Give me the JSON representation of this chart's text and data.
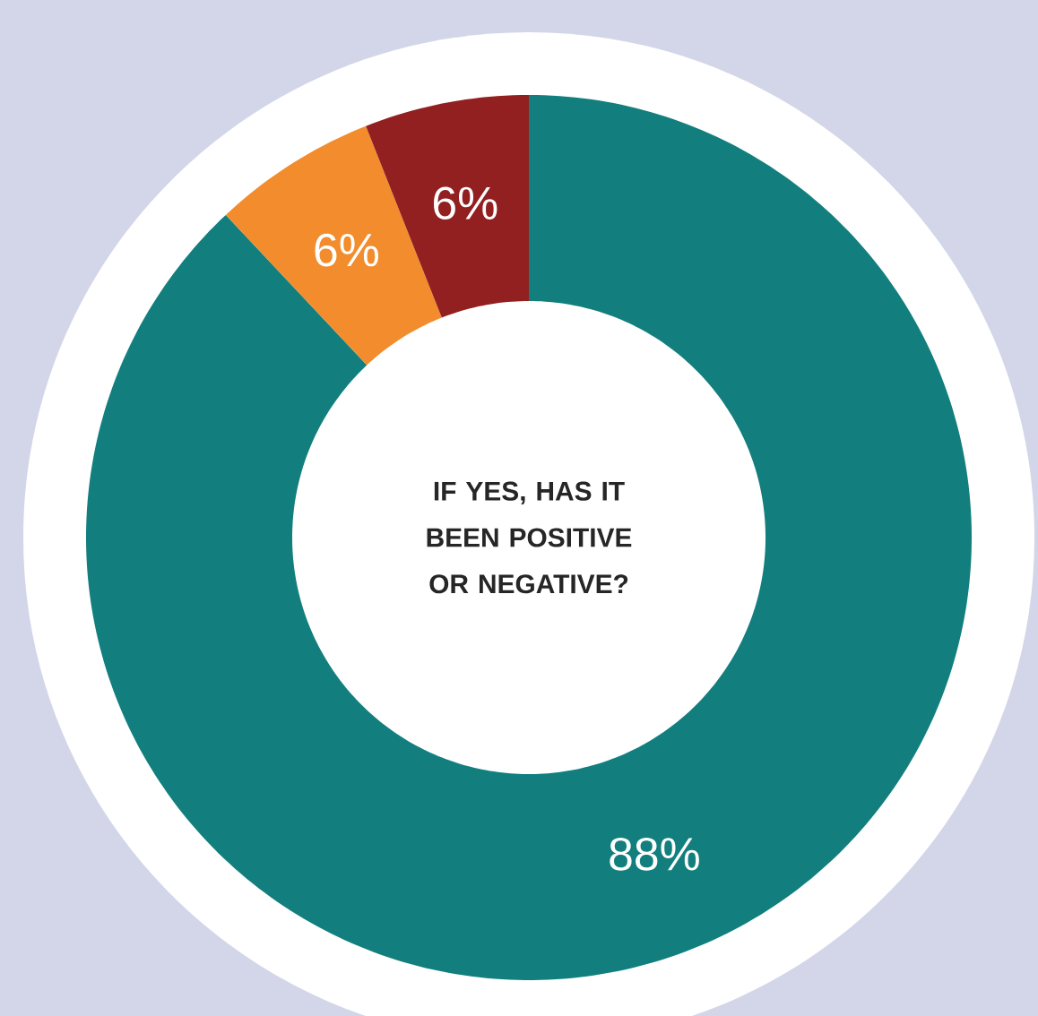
{
  "chart_data": {
    "type": "donut",
    "title": "IF YES, HAS IT BEEN POSITIVE OR NEGATIVE?",
    "categories": [
      null,
      null,
      null
    ],
    "values": [
      88,
      6,
      6
    ],
    "colors": [
      "#127f7e",
      "#f28c2c",
      "#922020"
    ],
    "value_labels": [
      "88%",
      "6%",
      "6%"
    ]
  }
}
